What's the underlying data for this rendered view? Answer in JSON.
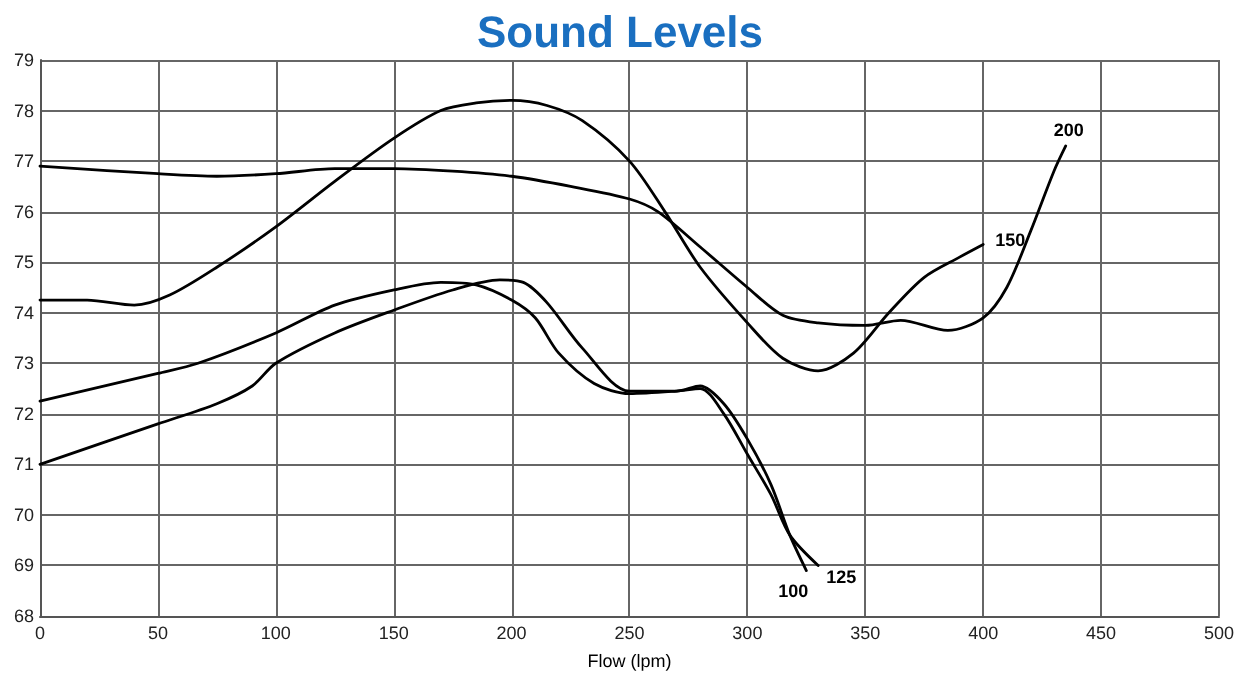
{
  "chart_data": {
    "type": "line",
    "title": "Sound Levels",
    "xlabel": "Flow (lpm)",
    "xlim": [
      0,
      500
    ],
    "xticks": [
      0,
      50,
      100,
      150,
      200,
      250,
      300,
      350,
      400,
      450,
      500
    ],
    "ylim": [
      68,
      79
    ],
    "yticks": [
      68,
      69,
      70,
      71,
      72,
      73,
      74,
      75,
      76,
      77,
      78,
      79
    ],
    "grid": true,
    "legend": false,
    "line_style": "solid",
    "series": [
      {
        "name": "100",
        "color": "#000000",
        "x": [
          0,
          50,
          75,
          90,
          100,
          125,
          150,
          175,
          195,
          205,
          215,
          230,
          250,
          270,
          280,
          290,
          300,
          310,
          318,
          325
        ],
        "values": [
          71.0,
          71.8,
          72.2,
          72.55,
          73.0,
          73.6,
          74.05,
          74.45,
          74.65,
          74.6,
          74.2,
          73.3,
          72.45,
          72.45,
          72.55,
          72.2,
          71.5,
          70.6,
          69.6,
          68.9
        ]
      },
      {
        "name": "125",
        "color": "#000000",
        "x": [
          0,
          50,
          67,
          100,
          125,
          150,
          170,
          185,
          200,
          210,
          220,
          235,
          250,
          270,
          280,
          290,
          300,
          310,
          318,
          330
        ],
        "values": [
          72.25,
          72.8,
          73.0,
          73.6,
          74.15,
          74.45,
          74.6,
          74.55,
          74.25,
          73.9,
          73.2,
          72.6,
          72.4,
          72.45,
          72.5,
          72.0,
          71.2,
          70.4,
          69.6,
          69.0
        ]
      },
      {
        "name": "150",
        "color": "#000000",
        "x": [
          0,
          20,
          40,
          55,
          75,
          100,
          125,
          150,
          170,
          185,
          200,
          215,
          230,
          250,
          265,
          280,
          300,
          315,
          330,
          345,
          360,
          375,
          390,
          400
        ],
        "values": [
          74.25,
          74.25,
          74.15,
          74.35,
          74.9,
          75.7,
          76.6,
          77.45,
          78.0,
          78.15,
          78.2,
          78.1,
          77.8,
          77.0,
          76.0,
          74.9,
          73.8,
          73.1,
          72.85,
          73.2,
          74.0,
          74.7,
          75.1,
          75.35
        ]
      },
      {
        "name": "200",
        "color": "#000000",
        "x": [
          0,
          50,
          75,
          100,
          125,
          150,
          175,
          200,
          225,
          250,
          262,
          280,
          300,
          315,
          330,
          350,
          365,
          385,
          400,
          410,
          420,
          430,
          435
        ],
        "values": [
          76.9,
          76.75,
          76.7,
          76.75,
          76.85,
          76.85,
          76.8,
          76.7,
          76.5,
          76.25,
          76.0,
          75.3,
          74.5,
          73.95,
          73.8,
          73.75,
          73.85,
          73.65,
          73.9,
          74.5,
          75.6,
          76.8,
          77.3
        ]
      }
    ]
  }
}
